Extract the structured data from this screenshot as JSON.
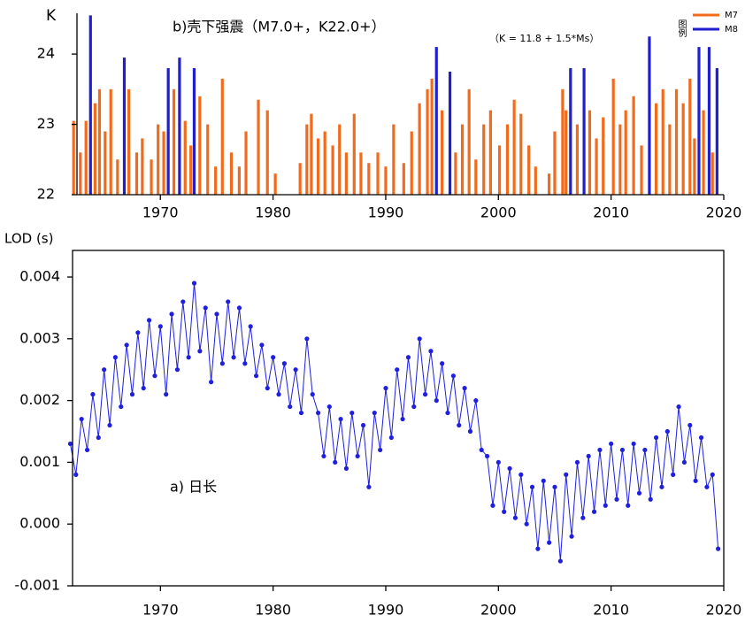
{
  "chart_data": [
    {
      "type": "bar",
      "title": "b)壳下强震（M7.0+，K22.0+）",
      "annotation": "（K = 11.8 + 1.5*Ms）",
      "ylabel": "K",
      "legend_title": "图例",
      "legend": "top-right",
      "xlim": [
        1962.6,
        2020
      ],
      "xticks": [
        1970,
        1980,
        1990,
        2000,
        2010,
        2020
      ],
      "ylim": [
        22,
        24.58
      ],
      "yticks": [
        22,
        23,
        24
      ],
      "series": [
        {
          "name": "M7",
          "color": "#f26b1d",
          "x": [
            1962.3,
            1962.9,
            1963.4,
            1964.2,
            1964.6,
            1965.1,
            1965.6,
            1966.2,
            1967.2,
            1967.9,
            1968.4,
            1969.2,
            1969.8,
            1970.3,
            1971.2,
            1972.2,
            1972.7,
            1973.5,
            1974.2,
            1974.9,
            1975.5,
            1976.3,
            1977.0,
            1977.6,
            1978.7,
            1979.5,
            1980.2,
            1982.4,
            1983.0,
            1983.4,
            1984.0,
            1984.6,
            1985.3,
            1985.9,
            1986.5,
            1987.2,
            1987.8,
            1988.5,
            1989.3,
            1990.0,
            1990.7,
            1991.6,
            1992.3,
            1993.0,
            1993.7,
            1994.1,
            1995.0,
            1996.2,
            1996.8,
            1997.4,
            1998.0,
            1998.7,
            1999.3,
            2000.1,
            2000.8,
            2001.4,
            2002.0,
            2002.7,
            2003.3,
            2004.5,
            2005.0,
            2005.7,
            2006.0,
            2007.0,
            2008.1,
            2008.7,
            2009.3,
            2010.2,
            2010.8,
            2011.3,
            2012.0,
            2012.7,
            2014.0,
            2014.6,
            2015.2,
            2015.8,
            2016.4,
            2017.0,
            2017.4,
            2018.2,
            2019.0
          ],
          "values": [
            23.05,
            22.6,
            23.05,
            23.3,
            23.5,
            22.9,
            23.5,
            22.5,
            23.5,
            22.6,
            22.8,
            22.5,
            23.0,
            22.9,
            23.5,
            23.05,
            22.7,
            23.4,
            23.0,
            22.4,
            23.65,
            22.6,
            22.4,
            22.9,
            23.35,
            23.2,
            22.3,
            22.45,
            23.0,
            23.15,
            22.8,
            22.9,
            22.7,
            23.0,
            22.6,
            23.15,
            22.6,
            22.45,
            22.6,
            22.4,
            23.0,
            22.45,
            22.9,
            23.3,
            23.5,
            23.65,
            23.2,
            22.6,
            23.0,
            23.5,
            22.5,
            23.0,
            23.2,
            22.7,
            23.0,
            23.35,
            23.15,
            22.7,
            22.4,
            22.3,
            22.9,
            23.5,
            23.2,
            23.0,
            23.2,
            22.8,
            23.1,
            23.65,
            23.0,
            23.2,
            23.4,
            22.7,
            23.3,
            23.5,
            23.0,
            23.5,
            23.3,
            23.65,
            22.8,
            23.2,
            22.6
          ]
        },
        {
          "name": "M8",
          "color": "#1f1fd0",
          "x": [
            1963.8,
            1966.8,
            1970.7,
            1971.7,
            1973.0,
            1994.5,
            1995.7,
            2006.4,
            2007.6,
            2013.4,
            2017.8,
            2018.7,
            2019.4
          ],
          "values": [
            24.55,
            23.95,
            23.8,
            23.95,
            23.8,
            24.1,
            23.75,
            23.8,
            23.8,
            24.25,
            24.1,
            24.1,
            23.8
          ]
        }
      ]
    },
    {
      "type": "line",
      "ylabel": "LOD (s)",
      "annotation": "a) 日长",
      "xlim": [
        1962.2,
        2020
      ],
      "xticks": [
        1970,
        1980,
        1990,
        2000,
        2010,
        2020
      ],
      "ylim": [
        -0.001,
        0.00443
      ],
      "yticks": [
        -0.001,
        {
          "value": 0,
          "label": "0.000"
        },
        0.001,
        0.002,
        0.003,
        0.004
      ],
      "x": [
        1962,
        1962.5,
        1963,
        1963.5,
        1964,
        1964.5,
        1965,
        1965.5,
        1966,
        1966.5,
        1967,
        1967.5,
        1968,
        1968.5,
        1969,
        1969.5,
        1970,
        1970.5,
        1971,
        1971.5,
        1972,
        1972.5,
        1973,
        1973.5,
        1974,
        1974.5,
        1975,
        1975.5,
        1976,
        1976.5,
        1977,
        1977.5,
        1978,
        1978.5,
        1979,
        1979.5,
        1980,
        1980.5,
        1981,
        1981.5,
        1982,
        1982.5,
        1983,
        1983.5,
        1984,
        1984.5,
        1985,
        1985.5,
        1986,
        1986.5,
        1987,
        1987.5,
        1988,
        1988.5,
        1989,
        1989.5,
        1990,
        1990.5,
        1991,
        1991.5,
        1992,
        1992.5,
        1993,
        1993.5,
        1994,
        1994.5,
        1995,
        1995.5,
        1996,
        1996.5,
        1997,
        1997.5,
        1998,
        1998.5,
        1999,
        1999.5,
        2000,
        2000.5,
        2001,
        2001.5,
        2002,
        2002.5,
        2003,
        2003.5,
        2004,
        2004.5,
        2005,
        2005.5,
        2006,
        2006.5,
        2007,
        2007.5,
        2008,
        2008.5,
        2009,
        2009.5,
        2010,
        2010.5,
        2011,
        2011.5,
        2012,
        2012.5,
        2013,
        2013.5,
        2014,
        2014.5,
        2015,
        2015.5,
        2016,
        2016.5,
        2017,
        2017.5,
        2018,
        2018.5,
        2019,
        2019.5
      ],
      "series": [
        {
          "color": "#1f1fe0",
          "values": [
            0.0013,
            0.0008,
            0.0017,
            0.0012,
            0.0021,
            0.0014,
            0.0025,
            0.0016,
            0.0027,
            0.0019,
            0.0029,
            0.0021,
            0.0031,
            0.0022,
            0.0033,
            0.0024,
            0.0032,
            0.0021,
            0.0034,
            0.0025,
            0.0036,
            0.0027,
            0.0039,
            0.0028,
            0.0035,
            0.0023,
            0.0034,
            0.0026,
            0.0036,
            0.0027,
            0.0035,
            0.0026,
            0.0032,
            0.0024,
            0.0029,
            0.0022,
            0.0027,
            0.0021,
            0.0026,
            0.0019,
            0.0025,
            0.0018,
            0.003,
            0.0021,
            0.0018,
            0.0011,
            0.0019,
            0.001,
            0.0017,
            0.0009,
            0.0018,
            0.0011,
            0.0016,
            0.0006,
            0.0018,
            0.0012,
            0.0022,
            0.0014,
            0.0025,
            0.0017,
            0.0027,
            0.0019,
            0.003,
            0.0021,
            0.0028,
            0.002,
            0.0026,
            0.0018,
            0.0024,
            0.0016,
            0.0022,
            0.0015,
            0.002,
            0.0012,
            0.0011,
            0.0003,
            0.001,
            0.0002,
            0.0009,
            0.0001,
            0.0008,
            0.0,
            0.0006,
            -0.0004,
            0.0007,
            -0.0003,
            0.0006,
            -0.0006,
            0.0008,
            -0.0002,
            0.001,
            0.0001,
            0.0011,
            0.0002,
            0.0012,
            0.0003,
            0.0013,
            0.0004,
            0.0012,
            0.0003,
            0.0013,
            0.0005,
            0.0012,
            0.0004,
            0.0014,
            0.0006,
            0.0015,
            0.0008,
            0.0019,
            0.001,
            0.0016,
            0.0007,
            0.0014,
            0.0006,
            0.0008,
            -0.0004
          ]
        }
      ]
    }
  ]
}
